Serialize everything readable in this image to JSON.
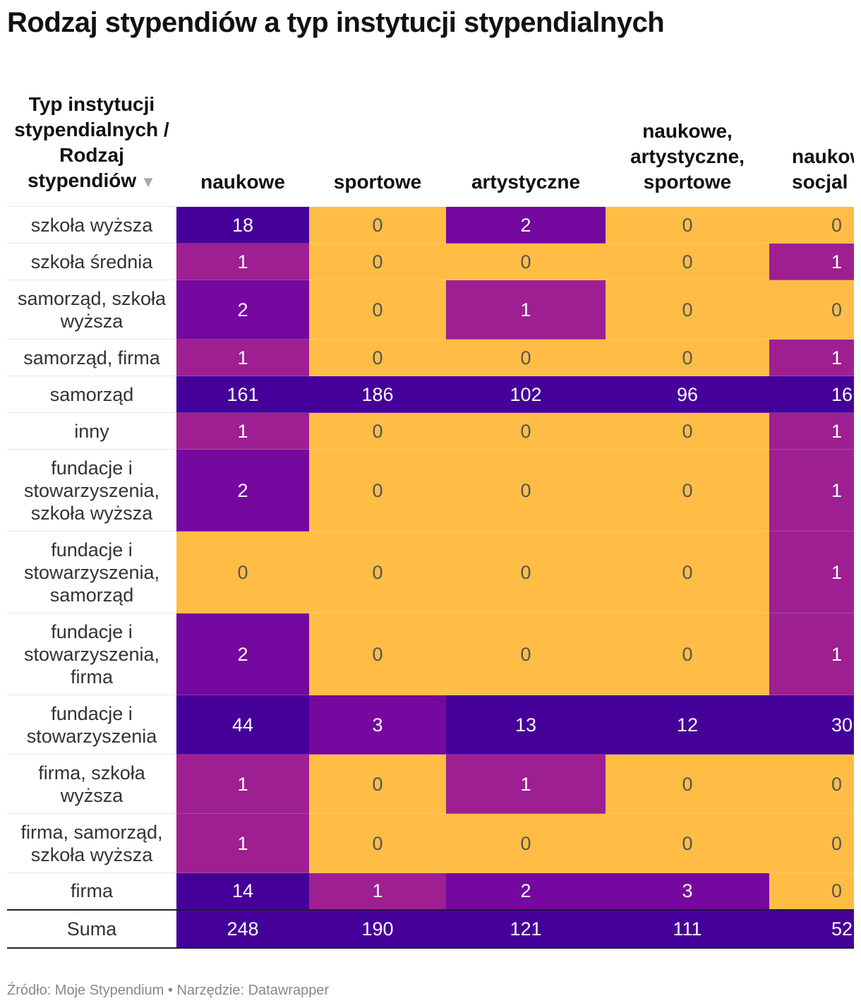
{
  "title": "Rodzaj stypendiów a typ instytucji stypendialnych",
  "source": "Źródło: Moje Stypendium • Narzędzie: Datawrapper",
  "colors": {
    "zero": "#ffbd46",
    "low": "#9e1f92",
    "mid": "#75089f",
    "high": "#45009a"
  },
  "chart_data": {
    "type": "table",
    "row_header": "Typ instytucji stypendialnych / Rodzaj stypendiów",
    "sort_indicator": "▼",
    "columns": [
      "naukowe",
      "sportowe",
      "artystyczne",
      "naukowe, artystyczne, sportowe",
      "naukowe, socjalne"
    ],
    "columns_visible": [
      "naukowe",
      "sportowe",
      "artystyczne",
      "naukowe, artystyczne, sportowe",
      "naukow socjal"
    ],
    "rows": [
      {
        "label": "szkoła wyższa",
        "values": [
          18,
          0,
          2,
          0,
          0
        ]
      },
      {
        "label": "szkoła średnia",
        "values": [
          1,
          0,
          0,
          0,
          1
        ]
      },
      {
        "label": "samorząd, szkoła wyższa",
        "values": [
          2,
          0,
          1,
          0,
          0
        ]
      },
      {
        "label": "samorząd, firma",
        "values": [
          1,
          0,
          0,
          0,
          1
        ]
      },
      {
        "label": "samorząd",
        "values": [
          161,
          186,
          102,
          96,
          16
        ]
      },
      {
        "label": "inny",
        "values": [
          1,
          0,
          0,
          0,
          1
        ]
      },
      {
        "label": "fundacje i stowarzyszenia, szkoła wyższa",
        "values": [
          2,
          0,
          0,
          0,
          1
        ]
      },
      {
        "label": "fundacje i stowarzyszenia, samorząd",
        "values": [
          0,
          0,
          0,
          0,
          1
        ]
      },
      {
        "label": "fundacje i stowarzyszenia, firma",
        "values": [
          2,
          0,
          0,
          0,
          1
        ]
      },
      {
        "label": "fundacje i stowarzyszenia",
        "values": [
          44,
          3,
          13,
          12,
          30
        ]
      },
      {
        "label": "firma, szkoła wyższa",
        "values": [
          1,
          0,
          1,
          0,
          0
        ]
      },
      {
        "label": "firma, samorząd, szkoła wyższa",
        "values": [
          1,
          0,
          0,
          0,
          0
        ]
      },
      {
        "label": "firma",
        "values": [
          14,
          1,
          2,
          3,
          0
        ]
      }
    ],
    "total": {
      "label": "Suma",
      "values": [
        248,
        190,
        121,
        111,
        52
      ]
    }
  }
}
